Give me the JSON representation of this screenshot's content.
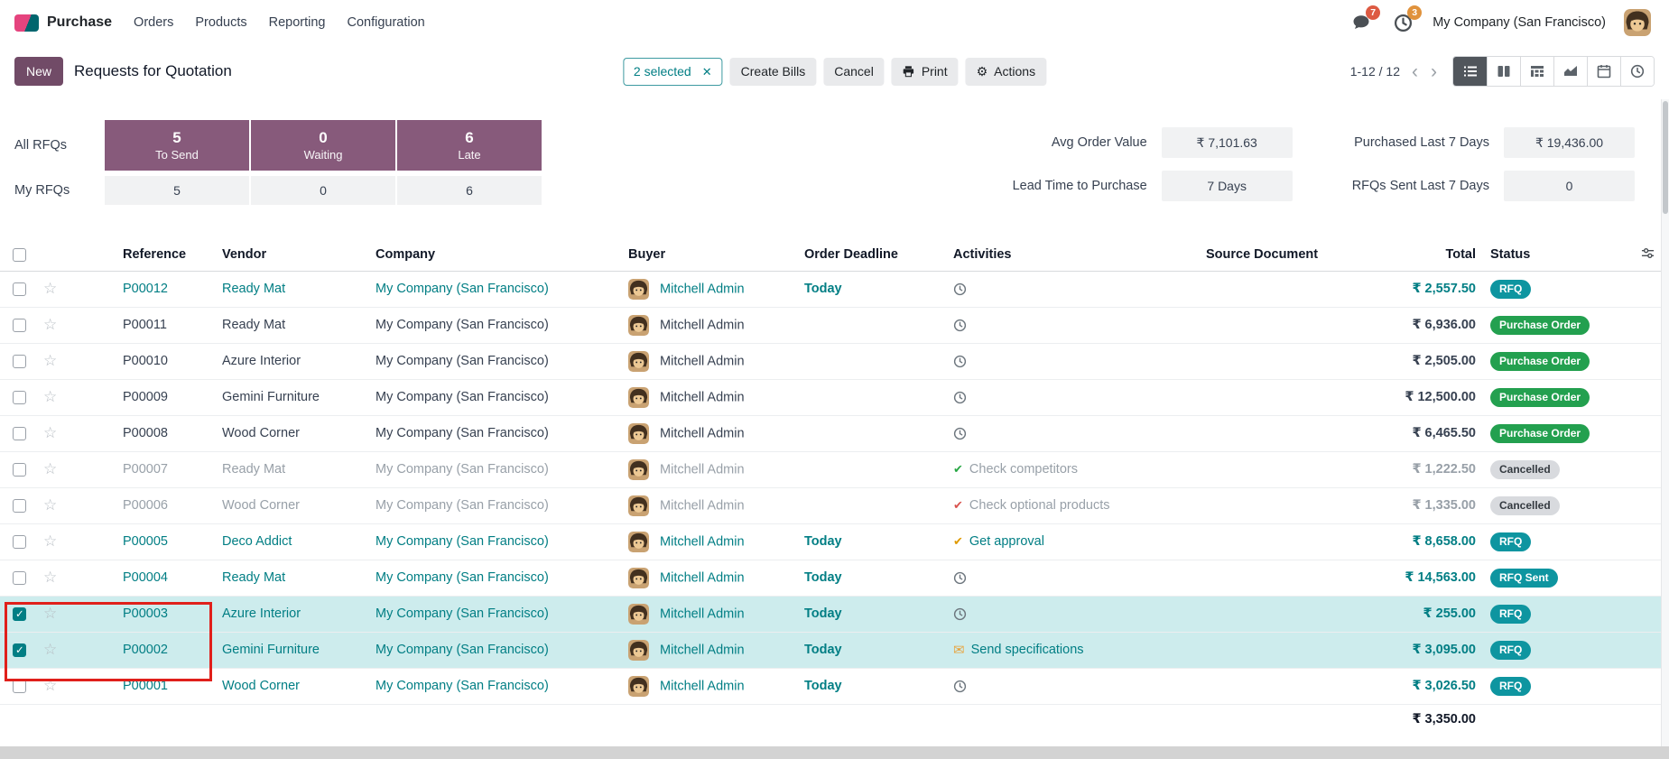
{
  "colors": {
    "primary": "#714B67",
    "accent_teal": "#017E84",
    "badge_rfq": "#0E95A0",
    "badge_purchase_order": "#23A04F",
    "badge_cancelled": "#D8DADE",
    "deadline_today": "#CE8500",
    "selected_row_bg": "#CDECEE",
    "annotation_red": "#E0201B",
    "dashboard_tile_purple": "#875A7B"
  },
  "icons": {
    "navbar": [
      "chat-bubble",
      "clock"
    ],
    "print_button": "printer",
    "actions_button": "gear",
    "view_switcher": [
      "list",
      "kanban",
      "pivot",
      "graph",
      "calendar",
      "activity"
    ],
    "favorite": "star-outline",
    "optional_columns": "sliders",
    "row_activity": [
      "clock",
      "check",
      "envelope"
    ]
  },
  "navbar": {
    "app_name": "Purchase",
    "menus": [
      "Orders",
      "Products",
      "Reporting",
      "Configuration"
    ],
    "messages_badge": "7",
    "activities_badge": "3",
    "company": "My Company (San Francisco)"
  },
  "control_panel": {
    "new_label": "New",
    "title": "Requests for Quotation",
    "selected_chip": "2 selected",
    "create_bills_label": "Create Bills",
    "cancel_label": "Cancel",
    "print_label": "Print",
    "actions_label": "Actions",
    "pager": "1-12 / 12"
  },
  "dashboard": {
    "all_rfqs_label": "All RFQs",
    "my_rfqs_label": "My RFQs",
    "tiles": [
      {
        "value": "5",
        "label": "To Send",
        "my": "5"
      },
      {
        "value": "0",
        "label": "Waiting",
        "my": "0"
      },
      {
        "value": "6",
        "label": "Late",
        "my": "6"
      }
    ],
    "stats": [
      {
        "label": "Avg Order Value",
        "value": "₹ 7,101.63"
      },
      {
        "label": "Purchased Last 7 Days",
        "value": "₹ 19,436.00"
      },
      {
        "label": "Lead Time to Purchase",
        "value": "7 Days"
      },
      {
        "label": "RFQs Sent Last 7 Days",
        "value": "0"
      }
    ]
  },
  "table": {
    "headers": [
      "Reference",
      "Vendor",
      "Company",
      "Buyer",
      "Order Deadline",
      "Activities",
      "Source Document",
      "Total",
      "Status"
    ],
    "footer_total": "₹ 3,350.00",
    "rows": [
      {
        "reference": "P00012",
        "vendor": "Ready Mat",
        "company": "My Company (San Francisco)",
        "buyer": "Mitchell Admin",
        "deadline": "Today",
        "activity": {
          "icon": "clock",
          "label": ""
        },
        "source": "",
        "total": "₹ 2,557.50",
        "status": "RFQ",
        "status_type": "rfq",
        "style": "info",
        "selected": false
      },
      {
        "reference": "P00011",
        "vendor": "Ready Mat",
        "company": "My Company (San Francisco)",
        "buyer": "Mitchell Admin",
        "deadline": "",
        "activity": {
          "icon": "clock",
          "label": ""
        },
        "source": "",
        "total": "₹ 6,936.00",
        "status": "Purchase Order",
        "status_type": "po",
        "style": "normal",
        "selected": false
      },
      {
        "reference": "P00010",
        "vendor": "Azure Interior",
        "company": "My Company (San Francisco)",
        "buyer": "Mitchell Admin",
        "deadline": "",
        "activity": {
          "icon": "clock",
          "label": ""
        },
        "source": "",
        "total": "₹ 2,505.00",
        "status": "Purchase Order",
        "status_type": "po",
        "style": "normal",
        "selected": false
      },
      {
        "reference": "P00009",
        "vendor": "Gemini Furniture",
        "company": "My Company (San Francisco)",
        "buyer": "Mitchell Admin",
        "deadline": "",
        "activity": {
          "icon": "clock",
          "label": ""
        },
        "source": "",
        "total": "₹ 12,500.00",
        "status": "Purchase Order",
        "status_type": "po",
        "style": "normal",
        "selected": false
      },
      {
        "reference": "P00008",
        "vendor": "Wood Corner",
        "company": "My Company (San Francisco)",
        "buyer": "Mitchell Admin",
        "deadline": "",
        "activity": {
          "icon": "clock",
          "label": ""
        },
        "source": "",
        "total": "₹ 6,465.50",
        "status": "Purchase Order",
        "status_type": "po",
        "style": "normal",
        "selected": false
      },
      {
        "reference": "P00007",
        "vendor": "Ready Mat",
        "company": "My Company (San Francisco)",
        "buyer": "Mitchell Admin",
        "deadline": "",
        "activity": {
          "icon": "check-green",
          "label": "Check competitors"
        },
        "source": "",
        "total": "₹ 1,222.50",
        "status": "Cancelled",
        "status_type": "cancelled",
        "style": "muted",
        "selected": false
      },
      {
        "reference": "P00006",
        "vendor": "Wood Corner",
        "company": "My Company (San Francisco)",
        "buyer": "Mitchell Admin",
        "deadline": "",
        "activity": {
          "icon": "check-red",
          "label": "Check optional products"
        },
        "source": "",
        "total": "₹ 1,335.00",
        "status": "Cancelled",
        "status_type": "cancelled",
        "style": "muted",
        "selected": false
      },
      {
        "reference": "P00005",
        "vendor": "Deco Addict",
        "company": "My Company (San Francisco)",
        "buyer": "Mitchell Admin",
        "deadline": "Today",
        "activity": {
          "icon": "check-orange",
          "label": "Get approval"
        },
        "source": "",
        "total": "₹ 8,658.00",
        "status": "RFQ",
        "status_type": "rfq",
        "style": "info",
        "selected": false
      },
      {
        "reference": "P00004",
        "vendor": "Ready Mat",
        "company": "My Company (San Francisco)",
        "buyer": "Mitchell Admin",
        "deadline": "Today",
        "activity": {
          "icon": "clock",
          "label": ""
        },
        "source": "",
        "total": "₹ 14,563.00",
        "status": "RFQ Sent",
        "status_type": "rfq",
        "style": "info",
        "selected": false
      },
      {
        "reference": "P00003",
        "vendor": "Azure Interior",
        "company": "My Company (San Francisco)",
        "buyer": "Mitchell Admin",
        "deadline": "Today",
        "activity": {
          "icon": "clock",
          "label": ""
        },
        "source": "",
        "total": "₹ 255.00",
        "status": "RFQ",
        "status_type": "rfq",
        "style": "info",
        "selected": true
      },
      {
        "reference": "P00002",
        "vendor": "Gemini Furniture",
        "company": "My Company (San Francisco)",
        "buyer": "Mitchell Admin",
        "deadline": "Today",
        "activity": {
          "icon": "envelope",
          "label": "Send specifications"
        },
        "source": "",
        "total": "₹ 3,095.00",
        "status": "RFQ",
        "status_type": "rfq",
        "style": "info",
        "selected": true
      },
      {
        "reference": "P00001",
        "vendor": "Wood Corner",
        "company": "My Company (San Francisco)",
        "buyer": "Mitchell Admin",
        "deadline": "Today",
        "activity": {
          "icon": "clock",
          "label": ""
        },
        "source": "",
        "total": "₹ 3,026.50",
        "status": "RFQ",
        "status_type": "rfq",
        "style": "info",
        "selected": false
      }
    ]
  }
}
